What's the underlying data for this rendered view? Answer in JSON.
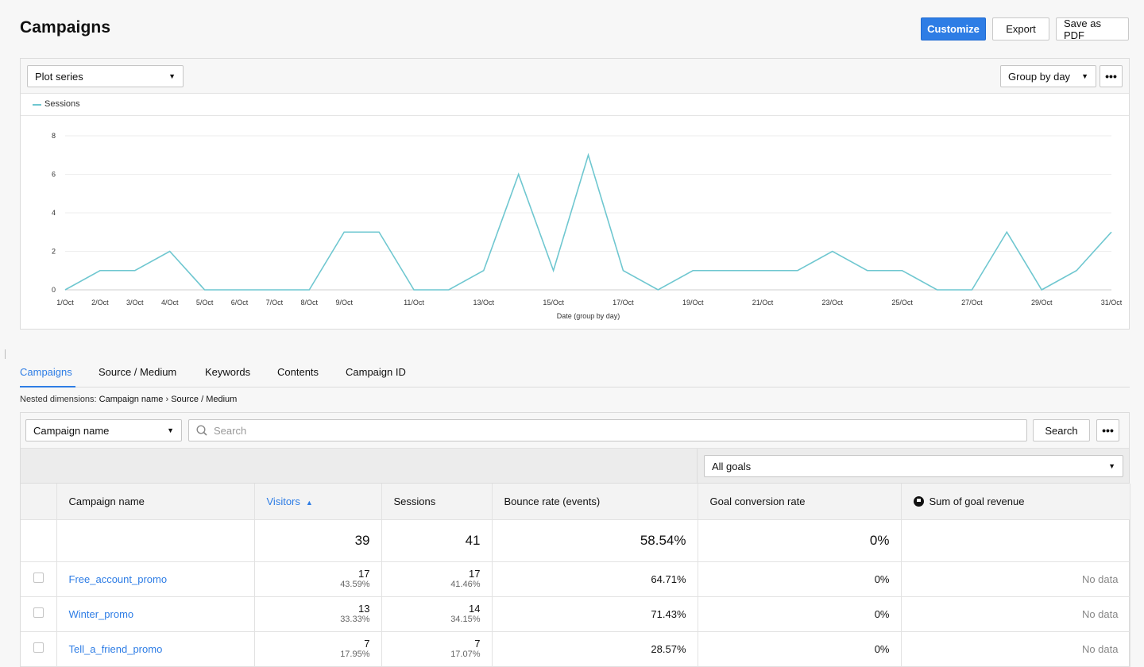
{
  "header": {
    "title": "Campaigns",
    "customize_label": "Customize",
    "export_label": "Export",
    "save_pdf_label": "Save as PDF"
  },
  "chart_panel": {
    "plot_series_label": "Plot series",
    "group_by_label": "Group by day",
    "more_label": "•••"
  },
  "chart_data": {
    "type": "line",
    "x": [
      "1/Oct",
      "2/Oct",
      "3/Oct",
      "4/Oct",
      "5/Oct",
      "6/Oct",
      "7/Oct",
      "8/Oct",
      "9/Oct",
      "10/Oct",
      "11/Oct",
      "12/Oct",
      "13/Oct",
      "14/Oct",
      "15/Oct",
      "16/Oct",
      "17/Oct",
      "18/Oct",
      "19/Oct",
      "20/Oct",
      "21/Oct",
      "22/Oct",
      "23/Oct",
      "24/Oct",
      "25/Oct",
      "26/Oct",
      "27/Oct",
      "28/Oct",
      "29/Oct",
      "30/Oct",
      "31/Oct"
    ],
    "x_tick_labels": [
      "1/Oct",
      "2/Oct",
      "3/Oct",
      "4/Oct",
      "5/Oct",
      "6/Oct",
      "7/Oct",
      "8/Oct",
      "9/Oct",
      "11/Oct",
      "13/Oct",
      "15/Oct",
      "17/Oct",
      "19/Oct",
      "21/Oct",
      "23/Oct",
      "25/Oct",
      "27/Oct",
      "29/Oct",
      "31/Oct"
    ],
    "series": [
      {
        "name": "Sessions",
        "color": "#6fc7d0",
        "values": [
          0,
          1,
          1,
          2,
          0,
          0,
          0,
          0,
          3,
          3,
          0,
          0,
          1,
          6,
          1,
          7,
          1,
          0,
          1,
          1,
          1,
          1,
          2,
          1,
          1,
          0,
          0,
          3,
          0,
          1,
          3
        ]
      }
    ],
    "xlabel": "Date (group by day)",
    "ylabel": "",
    "ylim": [
      0,
      8
    ],
    "y_ticks": [
      0,
      2,
      4,
      6,
      8
    ],
    "grid": true,
    "legend_position": "top-left"
  },
  "tabs": [
    {
      "label": "Campaigns",
      "active": true
    },
    {
      "label": "Source / Medium",
      "active": false
    },
    {
      "label": "Keywords",
      "active": false
    },
    {
      "label": "Contents",
      "active": false
    },
    {
      "label": "Campaign ID",
      "active": false
    }
  ],
  "nested": {
    "prefix": "Nested dimensions:",
    "dim1": "Campaign name",
    "sep": "›",
    "dim2": "Source / Medium"
  },
  "table_toolbar": {
    "dimension_select": "Campaign name",
    "search_placeholder": "Search",
    "search_button": "Search",
    "more_label": "•••",
    "goals_select": "All goals"
  },
  "table": {
    "columns": [
      "Campaign name",
      "Visitors",
      "Sessions",
      "Bounce rate (events)",
      "Goal conversion rate",
      "Sum of goal revenue"
    ],
    "totals": {
      "visitors": "39",
      "sessions": "41",
      "bounce": "58.54%",
      "conversion": "0%"
    },
    "rows": [
      {
        "name": "Free_account_promo",
        "visitors": "17",
        "visitors_pct": "43.59%",
        "sessions": "17",
        "sessions_pct": "41.46%",
        "bounce": "64.71%",
        "conversion": "0%",
        "revenue": "No data"
      },
      {
        "name": "Winter_promo",
        "visitors": "13",
        "visitors_pct": "33.33%",
        "sessions": "14",
        "sessions_pct": "34.15%",
        "bounce": "71.43%",
        "conversion": "0%",
        "revenue": "No data"
      },
      {
        "name": "Tell_a_friend_promo",
        "visitors": "7",
        "visitors_pct": "17.95%",
        "sessions": "7",
        "sessions_pct": "17.07%",
        "bounce": "28.57%",
        "conversion": "0%",
        "revenue": "No data"
      }
    ]
  }
}
